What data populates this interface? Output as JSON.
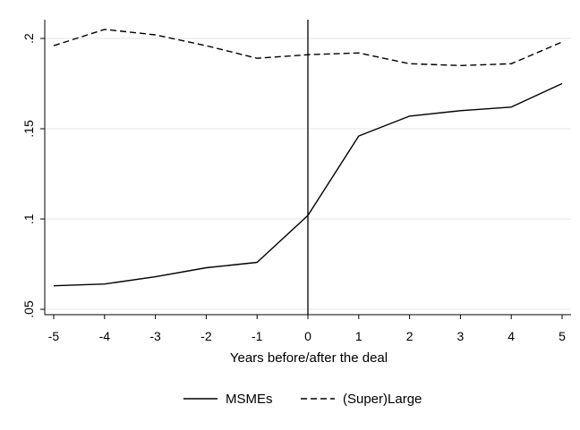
{
  "chart_data": {
    "type": "line",
    "title": "",
    "xlabel": "Years before/after the deal",
    "ylabel": "",
    "x": [
      -5,
      -4,
      -3,
      -2,
      -1,
      0,
      1,
      2,
      3,
      4,
      5
    ],
    "xlim": [
      -5,
      5
    ],
    "ylim": [
      0.05,
      0.2
    ],
    "x_ticks": [
      -5,
      -4,
      -3,
      -2,
      -1,
      0,
      1,
      2,
      3,
      4,
      5
    ],
    "x_tick_labels": [
      "-5",
      "-4",
      "-3",
      "-2",
      "-1",
      "0",
      "1",
      "2",
      "3",
      "4",
      "5"
    ],
    "y_ticks": [
      0.05,
      0.1,
      0.15,
      0.2
    ],
    "y_tick_labels": [
      ".05",
      ".1",
      ".15",
      ".2"
    ],
    "grid": true,
    "vertical_reference_line_x": 0,
    "legend_position": "bottom",
    "series": [
      {
        "name": "MSMEs",
        "style": "solid",
        "color": "#000000",
        "values": [
          0.063,
          0.064,
          0.068,
          0.073,
          0.076,
          0.102,
          0.146,
          0.157,
          0.16,
          0.162,
          0.175
        ]
      },
      {
        "name": "(Super)Large",
        "style": "dashed",
        "color": "#000000",
        "values": [
          0.196,
          0.205,
          0.202,
          0.196,
          0.189,
          0.191,
          0.192,
          0.186,
          0.185,
          0.186,
          0.198
        ]
      }
    ]
  }
}
